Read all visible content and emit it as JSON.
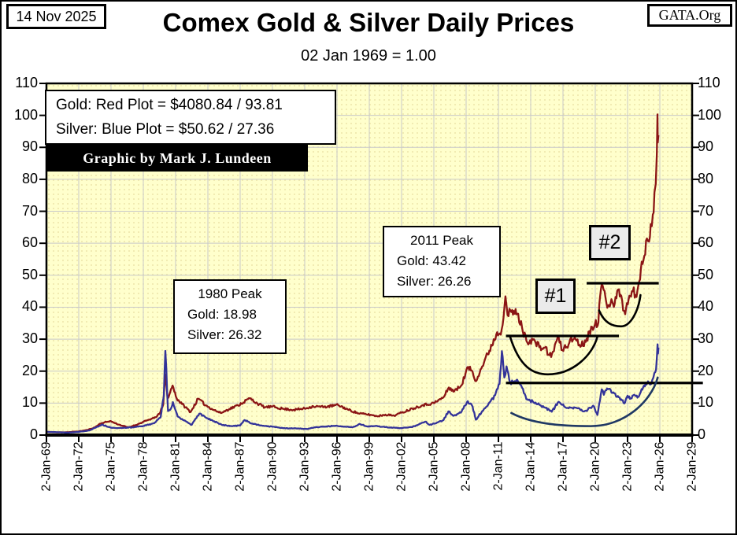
{
  "header": {
    "date": "14 Nov 2025",
    "title": "Comex Gold & Silver Daily Prices",
    "subtitle": "02 Jan 1969 = 1.00",
    "site": "GATA.Org"
  },
  "legend": {
    "gold": "Gold: Red Plot =  $4080.84 / 93.81",
    "silver": "Silver: Blue Plot  =  $50.62 / 27.36",
    "credit": "Graphic by Mark J. Lundeen"
  },
  "annotations": {
    "peak1980": {
      "title": "1980 Peak",
      "gold": "Gold:  18.98",
      "silver": "Silver: 26.32"
    },
    "peak2011": {
      "title": "2011 Peak",
      "gold": "Gold:  43.42",
      "silver": "Silver: 26.26"
    },
    "marker1": "#1",
    "marker2": "#2"
  },
  "chart_data": {
    "type": "line",
    "title": "Comex Gold & Silver Daily Prices",
    "subtitle": "02 Jan 1969 = 1.00",
    "x_range": [
      1969,
      2029
    ],
    "y_range": [
      0,
      110
    ],
    "y_ticks": [
      0,
      10,
      20,
      30,
      40,
      50,
      60,
      70,
      80,
      90,
      100,
      110
    ],
    "x_tick_years": [
      1969,
      1972,
      1975,
      1978,
      1981,
      1984,
      1987,
      1990,
      1993,
      1996,
      1999,
      2002,
      2005,
      2008,
      2011,
      2014,
      2017,
      2020,
      2023,
      2026,
      2029
    ],
    "x_tick_labels": [
      "2-Jan-69",
      "2-Jan-72",
      "2-Jan-75",
      "2-Jan-78",
      "2-Jan-81",
      "2-Jan-84",
      "2-Jan-87",
      "2-Jan-90",
      "2-Jan-93",
      "2-Jan-96",
      "2-Jan-99",
      "2-Jan-02",
      "2-Jan-05",
      "2-Jan-08",
      "2-Jan-11",
      "2-Jan-14",
      "2-Jan-17",
      "2-Jan-20",
      "2-Jan-23",
      "2-Jan-26",
      "2-Jan-29"
    ],
    "colors": {
      "plot_bg": "#FFFFCC",
      "grid": "#C9C9C9",
      "axis": "#000000",
      "gold": "#8B1515",
      "silver": "#333399",
      "silver_cup": "#1F3864"
    },
    "series": [
      {
        "name": "Gold",
        "color": "#8B1515",
        "current_price": "$4080.84",
        "current_index": 93.81,
        "peak_1980": 18.98,
        "peak_2011": 43.42,
        "points": [
          [
            1969.0,
            1.0
          ],
          [
            1969.5,
            0.95
          ],
          [
            1970.0,
            0.85
          ],
          [
            1971.0,
            0.9
          ],
          [
            1972.0,
            1.15
          ],
          [
            1972.8,
            1.6
          ],
          [
            1973.5,
            2.4
          ],
          [
            1974.0,
            3.6
          ],
          [
            1974.9,
            4.4
          ],
          [
            1975.7,
            3.3
          ],
          [
            1976.6,
            2.4
          ],
          [
            1977.5,
            3.4
          ],
          [
            1978.5,
            4.8
          ],
          [
            1979.0,
            5.3
          ],
          [
            1979.5,
            6.6
          ],
          [
            1979.85,
            9.5
          ],
          [
            1980.05,
            18.98
          ],
          [
            1980.25,
            11.5
          ],
          [
            1980.5,
            13.5
          ],
          [
            1980.72,
            15.5
          ],
          [
            1981.1,
            11.5
          ],
          [
            1981.6,
            9.7
          ],
          [
            1982.4,
            7.2
          ],
          [
            1983.1,
            11.4
          ],
          [
            1983.8,
            9.3
          ],
          [
            1984.6,
            7.8
          ],
          [
            1985.2,
            6.9
          ],
          [
            1986.0,
            8.2
          ],
          [
            1986.8,
            9.3
          ],
          [
            1987.9,
            11.5
          ],
          [
            1988.6,
            9.9
          ],
          [
            1989.3,
            8.7
          ],
          [
            1990.0,
            8.9
          ],
          [
            1991.0,
            8.2
          ],
          [
            1992.0,
            7.9
          ],
          [
            1993.0,
            8.3
          ],
          [
            1993.8,
            9.0
          ],
          [
            1994.8,
            8.8
          ],
          [
            1996.1,
            9.4
          ],
          [
            1997.0,
            8.0
          ],
          [
            1998.0,
            6.8
          ],
          [
            1999.2,
            6.3
          ],
          [
            1999.7,
            5.9
          ],
          [
            2000.5,
            6.4
          ],
          [
            2001.3,
            6.1
          ],
          [
            2002.0,
            7.0
          ],
          [
            2003.0,
            8.3
          ],
          [
            2004.0,
            9.4
          ],
          [
            2005.0,
            10.0
          ],
          [
            2005.9,
            11.8
          ],
          [
            2006.4,
            14.9
          ],
          [
            2006.9,
            13.7
          ],
          [
            2007.5,
            15.3
          ],
          [
            2008.2,
            21.3
          ],
          [
            2008.6,
            19.8
          ],
          [
            2008.85,
            16.9
          ],
          [
            2009.5,
            21.5
          ],
          [
            2010.0,
            25.3
          ],
          [
            2010.8,
            31.5
          ],
          [
            2011.3,
            33.0
          ],
          [
            2011.65,
            43.42
          ],
          [
            2011.85,
            37.5
          ],
          [
            2012.2,
            38.5
          ],
          [
            2012.75,
            38.0
          ],
          [
            2013.2,
            33.5
          ],
          [
            2013.6,
            29.5
          ],
          [
            2014.2,
            29.8
          ],
          [
            2014.8,
            27.5
          ],
          [
            2015.3,
            27.3
          ],
          [
            2015.9,
            24.4
          ],
          [
            2016.5,
            30.6
          ],
          [
            2016.95,
            26.6
          ],
          [
            2017.6,
            29.0
          ],
          [
            2018.1,
            30.5
          ],
          [
            2018.7,
            27.9
          ],
          [
            2019.2,
            30.2
          ],
          [
            2019.7,
            33.8
          ],
          [
            2020.05,
            36.0
          ],
          [
            2020.22,
            34.2
          ],
          [
            2020.6,
            47.2
          ],
          [
            2020.95,
            43.0
          ],
          [
            2021.2,
            40.6
          ],
          [
            2021.5,
            42.5
          ],
          [
            2021.8,
            41.0
          ],
          [
            2022.2,
            45.6
          ],
          [
            2022.5,
            42.0
          ],
          [
            2022.78,
            37.8
          ],
          [
            2023.1,
            42.5
          ],
          [
            2023.4,
            45.0
          ],
          [
            2023.75,
            43.8
          ],
          [
            2024.0,
            46.8
          ],
          [
            2024.4,
            53.5
          ],
          [
            2024.8,
            61.5
          ],
          [
            2025.0,
            60.5
          ],
          [
            2025.15,
            66.0
          ],
          [
            2025.35,
            69.0
          ],
          [
            2025.5,
            76.0
          ],
          [
            2025.62,
            78.5
          ],
          [
            2025.72,
            88.0
          ],
          [
            2025.78,
            100.3
          ],
          [
            2025.81,
            91.5
          ],
          [
            2025.87,
            93.81
          ]
        ]
      },
      {
        "name": "Silver",
        "color": "#333399",
        "current_price": "$50.62",
        "current_index": 27.36,
        "peak_1980": 26.32,
        "peak_2011": 26.26,
        "points": [
          [
            1969.0,
            1.0
          ],
          [
            1970.0,
            0.9
          ],
          [
            1971.0,
            0.78
          ],
          [
            1972.0,
            1.0
          ],
          [
            1973.0,
            1.45
          ],
          [
            1974.15,
            3.3
          ],
          [
            1975.0,
            2.3
          ],
          [
            1976.0,
            2.2
          ],
          [
            1977.0,
            2.45
          ],
          [
            1978.0,
            2.85
          ],
          [
            1979.0,
            3.7
          ],
          [
            1979.6,
            5.5
          ],
          [
            1979.9,
            12.0
          ],
          [
            1980.05,
            26.32
          ],
          [
            1980.3,
            7.5
          ],
          [
            1980.6,
            8.5
          ],
          [
            1980.75,
            10.3
          ],
          [
            1981.2,
            5.8
          ],
          [
            1982.0,
            4.2
          ],
          [
            1982.5,
            3.2
          ],
          [
            1983.2,
            6.7
          ],
          [
            1983.9,
            5.3
          ],
          [
            1984.6,
            4.3
          ],
          [
            1985.3,
            3.2
          ],
          [
            1986.2,
            2.8
          ],
          [
            1987.0,
            3.0
          ],
          [
            1987.4,
            4.7
          ],
          [
            1988.2,
            3.5
          ],
          [
            1989.0,
            3.0
          ],
          [
            1990.0,
            2.6
          ],
          [
            1991.2,
            2.1
          ],
          [
            1992.2,
            2.1
          ],
          [
            1993.2,
            1.9
          ],
          [
            1993.9,
            2.4
          ],
          [
            1995.0,
            2.7
          ],
          [
            1995.8,
            2.9
          ],
          [
            1996.5,
            2.7
          ],
          [
            1997.5,
            2.5
          ],
          [
            1998.1,
            3.5
          ],
          [
            1998.8,
            2.7
          ],
          [
            1999.5,
            2.8
          ],
          [
            2000.3,
            2.6
          ],
          [
            2001.1,
            2.3
          ],
          [
            2001.9,
            2.2
          ],
          [
            2003.0,
            2.5
          ],
          [
            2004.2,
            4.2
          ],
          [
            2004.6,
            3.2
          ],
          [
            2005.2,
            3.7
          ],
          [
            2005.9,
            4.7
          ],
          [
            2006.35,
            7.4
          ],
          [
            2006.8,
            6.0
          ],
          [
            2007.5,
            7.0
          ],
          [
            2008.15,
            10.6
          ],
          [
            2008.6,
            8.9
          ],
          [
            2008.9,
            4.8
          ],
          [
            2009.5,
            7.5
          ],
          [
            2010.0,
            9.2
          ],
          [
            2010.7,
            12.5
          ],
          [
            2011.1,
            16.0
          ],
          [
            2011.32,
            26.26
          ],
          [
            2011.55,
            18.0
          ],
          [
            2011.75,
            21.5
          ],
          [
            2012.1,
            16.5
          ],
          [
            2012.75,
            17.3
          ],
          [
            2013.2,
            14.8
          ],
          [
            2013.6,
            11.2
          ],
          [
            2014.2,
            10.5
          ],
          [
            2014.8,
            9.5
          ],
          [
            2015.4,
            8.5
          ],
          [
            2015.95,
            7.3
          ],
          [
            2016.6,
            10.4
          ],
          [
            2017.1,
            9.0
          ],
          [
            2017.7,
            8.6
          ],
          [
            2018.2,
            8.6
          ],
          [
            2018.8,
            7.5
          ],
          [
            2019.3,
            7.9
          ],
          [
            2019.8,
            9.2
          ],
          [
            2020.2,
            6.3
          ],
          [
            2020.6,
            14.3
          ],
          [
            2020.8,
            12.6
          ],
          [
            2021.1,
            14.6
          ],
          [
            2021.6,
            13.2
          ],
          [
            2022.1,
            12.2
          ],
          [
            2022.4,
            11.2
          ],
          [
            2022.7,
            9.9
          ],
          [
            2023.0,
            12.3
          ],
          [
            2023.3,
            11.5
          ],
          [
            2023.7,
            12.4
          ],
          [
            2024.0,
            12.0
          ],
          [
            2024.3,
            14.4
          ],
          [
            2024.6,
            15.2
          ],
          [
            2024.9,
            16.8
          ],
          [
            2025.1,
            15.8
          ],
          [
            2025.3,
            17.2
          ],
          [
            2025.5,
            19.5
          ],
          [
            2025.65,
            20.5
          ],
          [
            2025.73,
            24.5
          ],
          [
            2025.79,
            28.4
          ],
          [
            2025.83,
            25.5
          ],
          [
            2025.87,
            27.36
          ]
        ]
      }
    ],
    "overlays": {
      "hlines": [
        {
          "name": "gold-cup1-neckline",
          "x1": 2011.7,
          "x2": 2022.2,
          "v": 31.0
        },
        {
          "name": "gold-cup2-neckline",
          "x1": 2019.2,
          "x2": 2025.9,
          "v": 47.5
        },
        {
          "name": "silver-neckline",
          "x1": 2011.7,
          "x2": 2030.0,
          "v": 16.3
        }
      ],
      "cups": [
        {
          "name": "gold-cup-1",
          "x1": 2012.1,
          "v1": 30.6,
          "xb": 2015.6,
          "vb": 19.0,
          "x2": 2020.2,
          "v2": 30.8,
          "color": "#000000"
        },
        {
          "name": "gold-cup-2",
          "x1": 2020.35,
          "v1": 39.0,
          "xb": 2022.4,
          "vb": 34.0,
          "x2": 2024.2,
          "v2": 43.8,
          "color": "#000000"
        },
        {
          "name": "silver-cup",
          "x1": 2012.2,
          "v1": 6.9,
          "xb": 2019.6,
          "vb": 2.8,
          "x2": 2025.8,
          "v2": 18.0,
          "color": "#1F3864"
        }
      ]
    }
  }
}
